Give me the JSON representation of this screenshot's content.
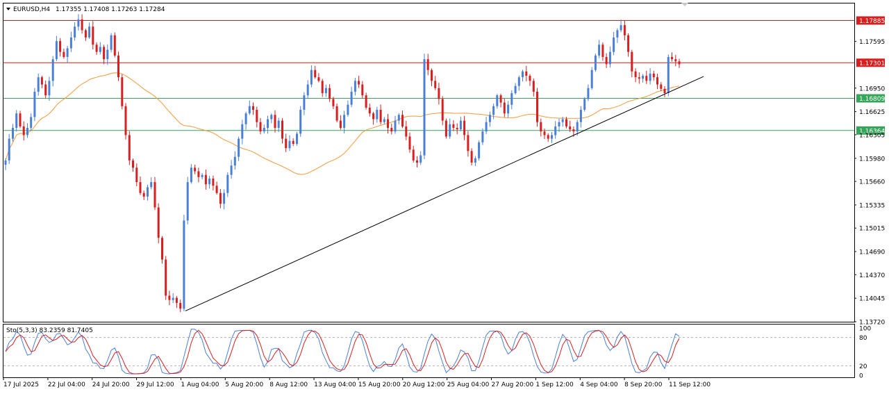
{
  "header": {
    "symbol": "EURUSD,H4",
    "ohlc": "1.17355 1.17408 1.17263 1.17284"
  },
  "stochastic": {
    "label": "Sto(5,3,3) 83.2359 81.7405",
    "scale_labels": [
      "100",
      "80",
      "20",
      "0"
    ],
    "levels": [
      80,
      20
    ],
    "main_color": "#4a7fd8",
    "signal_color": "#d81e1e"
  },
  "colors": {
    "bull": "#4a7fd8",
    "bear": "#d81e1e",
    "ma": "#f39a3a",
    "resistance": "#d81e1e",
    "support": "#35a55a",
    "trendline": "#000000"
  },
  "chart_data": {
    "type": "candlestick",
    "ylim": [
      1.1372,
      1.1812
    ],
    "y_ticks": [
      "1.17595",
      "1.16950",
      "1.16625",
      "1.16305",
      "1.15980",
      "1.15660",
      "1.15335",
      "1.15015",
      "1.14690",
      "1.14370",
      "1.14045",
      "1.13720"
    ],
    "x_ticks": [
      "17 Jul 2025",
      "22 Jul 04:00",
      "24 Jul 20:00",
      "29 Jul 12:00",
      "1 Aug 04:00",
      "5 Aug 20:00",
      "8 Aug 12:00",
      "13 Aug 04:00",
      "15 Aug 20:00",
      "20 Aug 12:00",
      "25 Aug 04:00",
      "27 Aug 20:00",
      "1 Sep 12:00",
      "4 Sep 04:00",
      "8 Sep 20:00",
      "11 Sep 12:00"
    ],
    "horizontal_levels": [
      {
        "price": 1.17885,
        "label": "1.17885",
        "kind": "resistance"
      },
      {
        "price": 1.17301,
        "label": "1.17301",
        "kind": "resistance"
      },
      {
        "price": 1.16809,
        "label": "1.16809",
        "kind": "support"
      },
      {
        "price": 1.16364,
        "label": "1.16364",
        "kind": "support"
      }
    ],
    "trendline": {
      "from_price": 1.1387,
      "to_price": 1.1711
    },
    "close_series": [
      1.1595,
      1.1625,
      1.164,
      1.166,
      1.1642,
      1.163,
      1.164,
      1.1655,
      1.169,
      1.171,
      1.17,
      1.1685,
      1.1705,
      1.1735,
      1.176,
      1.1745,
      1.1738,
      1.175,
      1.1765,
      1.178,
      1.179,
      1.1775,
      1.1765,
      1.178,
      1.1755,
      1.1745,
      1.1752,
      1.1735,
      1.1748,
      1.1768,
      1.174,
      1.171,
      1.167,
      1.163,
      1.1595,
      1.1585,
      1.1565,
      1.155,
      1.1545,
      1.1558,
      1.1565,
      1.153,
      1.1488,
      1.1458,
      1.1408,
      1.1402,
      1.1405,
      1.1398,
      1.139,
      1.1512,
      1.1565,
      1.1585,
      1.158,
      1.1572,
      1.1575,
      1.1562,
      1.157,
      1.156,
      1.155,
      1.1535,
      1.155,
      1.1575,
      1.1588,
      1.16,
      1.1625,
      1.1645,
      1.166,
      1.167,
      1.1665,
      1.1648,
      1.1635,
      1.164,
      1.1652,
      1.1658,
      1.164,
      1.165,
      1.1625,
      1.1612,
      1.1622,
      1.1618,
      1.1632,
      1.1665,
      1.1685,
      1.17,
      1.172,
      1.171,
      1.1705,
      1.1688,
      1.1695,
      1.168,
      1.167,
      1.165,
      1.164,
      1.1658,
      1.1672,
      1.169,
      1.1705,
      1.17,
      1.1685,
      1.1668,
      1.166,
      1.1652,
      1.1665,
      1.1648,
      1.1652,
      1.164,
      1.1635,
      1.165,
      1.1658,
      1.1642,
      1.1628,
      1.161,
      1.1595,
      1.1592,
      1.1602,
      1.1735,
      1.172,
      1.1705,
      1.1695,
      1.168,
      1.165,
      1.1628,
      1.1645,
      1.164,
      1.1638,
      1.165,
      1.163,
      1.1608,
      1.1592,
      1.1598,
      1.162,
      1.1635,
      1.1648,
      1.1658,
      1.167,
      1.1685,
      1.1675,
      1.166,
      1.1672,
      1.1688,
      1.1698,
      1.171,
      1.1718,
      1.1712,
      1.1705,
      1.169,
      1.1648,
      1.1635,
      1.163,
      1.1625,
      1.163,
      1.1642,
      1.1648,
      1.1652,
      1.1642,
      1.1638,
      1.1635,
      1.1648,
      1.1665,
      1.168,
      1.1695,
      1.172,
      1.174,
      1.1755,
      1.1738,
      1.1728,
      1.1745,
      1.1765,
      1.1775,
      1.1782,
      1.1768,
      1.1745,
      1.1718,
      1.171,
      1.1708,
      1.1712,
      1.1705,
      1.1715,
      1.171,
      1.17,
      1.1694,
      1.1688,
      1.1738,
      1.1735,
      1.1732,
      1.1728
    ],
    "ma_period": 50
  }
}
